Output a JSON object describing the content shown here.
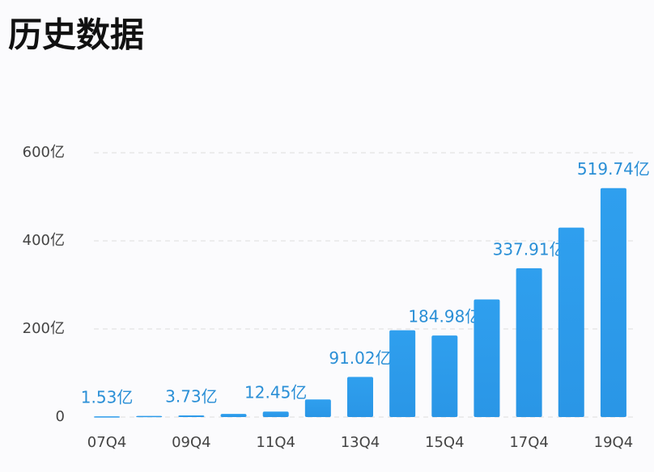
{
  "title": "历史数据",
  "chart_data": {
    "type": "bar",
    "categories": [
      "07Q4",
      null,
      "09Q4",
      null,
      "11Q4",
      null,
      "13Q4",
      null,
      "15Q4",
      null,
      "17Q4",
      null,
      "19Q4"
    ],
    "values": [
      1.53,
      2.5,
      3.73,
      7,
      12.45,
      40,
      91.02,
      197,
      184.98,
      267,
      337.91,
      430,
      519.74
    ],
    "value_labels": [
      "1.53亿",
      null,
      "3.73亿",
      null,
      "12.45亿",
      null,
      "91.02亿",
      null,
      "184.98亿",
      null,
      "337.91亿",
      null,
      "519.74亿"
    ],
    "color": "#2b9be9",
    "ylim": [
      0,
      600
    ],
    "yticks": [
      0,
      {
        "value": 200,
        "label": "200亿"
      },
      {
        "value": 400,
        "label": "400亿"
      },
      {
        "value": 600,
        "label": "600亿"
      }
    ],
    "grid": true
  }
}
